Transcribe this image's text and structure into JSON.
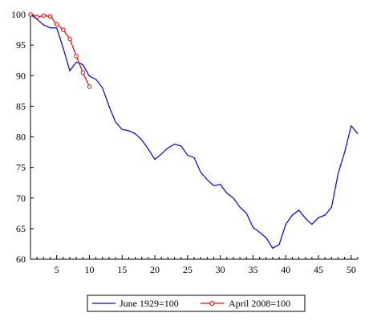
{
  "chart_data": {
    "type": "line",
    "title": "",
    "xlabel": "",
    "ylabel": "",
    "xlim": [
      1,
      51
    ],
    "ylim": [
      60,
      100
    ],
    "x_ticks": [
      5,
      10,
      15,
      20,
      25,
      30,
      35,
      40,
      45,
      50
    ],
    "y_ticks": [
      60,
      65,
      70,
      75,
      80,
      85,
      90,
      95,
      100
    ],
    "grid": false,
    "legend_position": "bottom",
    "series": [
      {
        "name": "June 1929=100",
        "color": "#0000ff",
        "marker": "none",
        "x": [
          1,
          2,
          3,
          4,
          5,
          6,
          7,
          8,
          9,
          10,
          11,
          12,
          13,
          14,
          15,
          16,
          17,
          18,
          19,
          20,
          21,
          22,
          23,
          24,
          25,
          26,
          27,
          28,
          29,
          30,
          31,
          32,
          33,
          34,
          35,
          36,
          37,
          38,
          39,
          40,
          41,
          42,
          43,
          44,
          45,
          46,
          47,
          48,
          49,
          50,
          51
        ],
        "y": [
          100,
          99.2,
          98.3,
          97.8,
          97.8,
          94.5,
          90.8,
          92.2,
          91.8,
          89.9,
          89.4,
          88,
          85,
          82.4,
          81.2,
          81,
          80.5,
          79.5,
          78,
          76.3,
          77.2,
          78.2,
          78.8,
          78.5,
          77,
          76.6,
          74.2,
          73,
          72,
          72.2,
          70.8,
          70,
          68.5,
          67.5,
          65.2,
          64.4,
          63.5,
          61.8,
          62.4,
          65.7,
          67.2,
          68,
          66.7,
          65.7,
          66.8,
          67.2,
          68.5,
          74,
          77.5,
          81.8,
          80.5
        ]
      },
      {
        "name": "April 2008=100",
        "color": "#ff0000",
        "marker": "circle",
        "x": [
          1,
          2,
          3,
          4,
          5,
          6,
          7,
          8,
          9,
          10
        ],
        "y": [
          100,
          99.6,
          99.8,
          99.7,
          98.4,
          97.5,
          96,
          93.2,
          90.5,
          88.2
        ]
      }
    ]
  }
}
